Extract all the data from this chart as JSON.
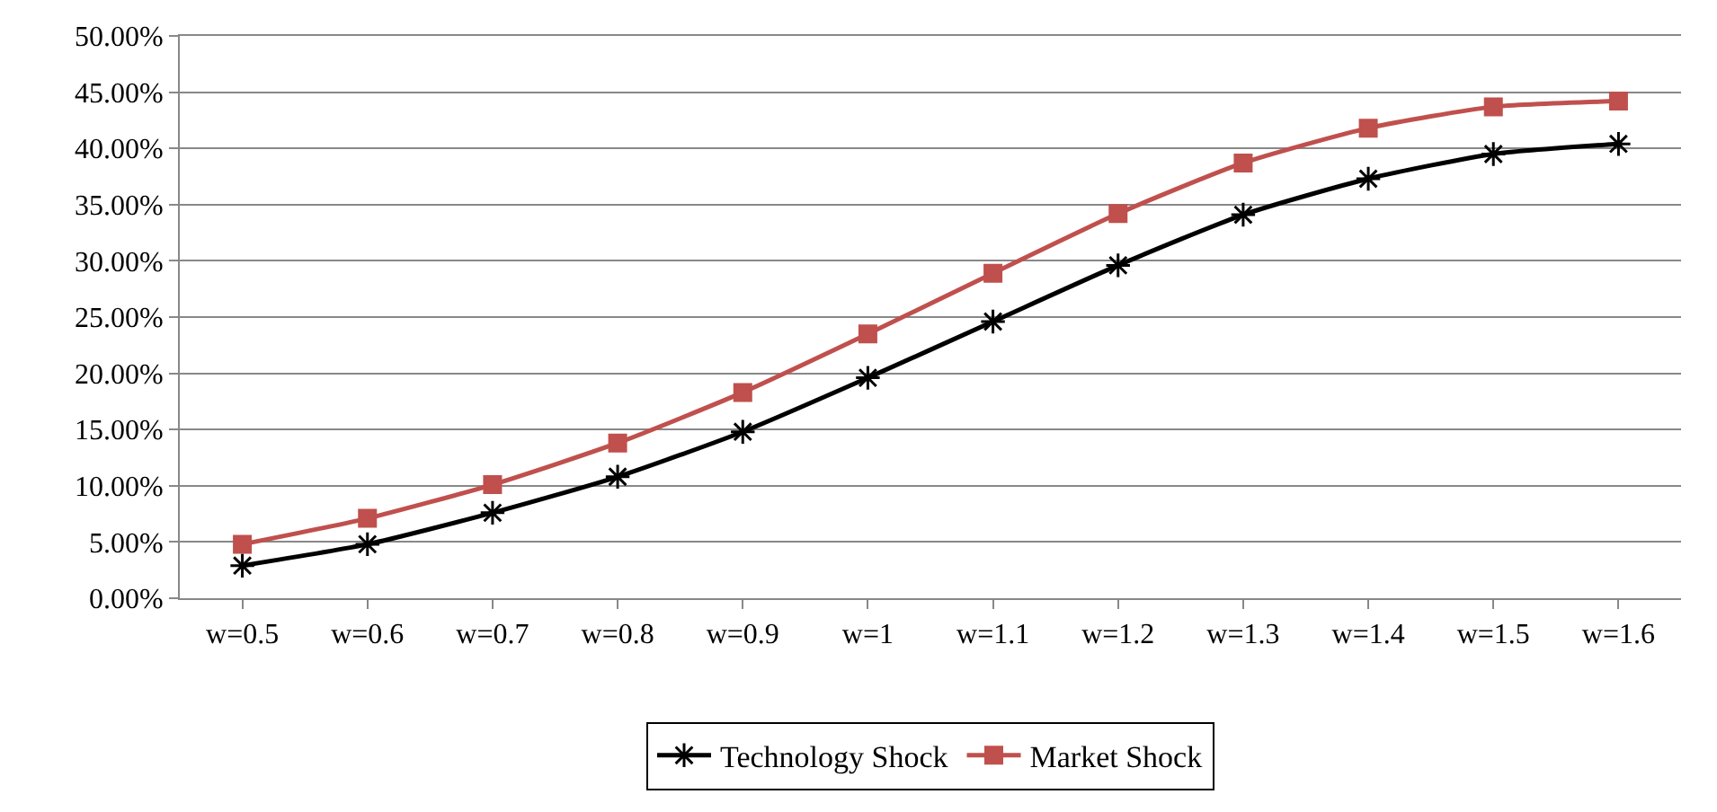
{
  "chart_data": {
    "type": "line",
    "categories": [
      "w=0.5",
      "w=0.6",
      "w=0.7",
      "w=0.8",
      "w=0.9",
      "w=1",
      "w=1.1",
      "w=1.2",
      "w=1.3",
      "w=1.4",
      "w=1.5",
      "w=1.6"
    ],
    "series": [
      {
        "name": "Technology Shock",
        "color": "#000000",
        "marker": "cross",
        "values": [
          2.9,
          4.8,
          7.6,
          10.8,
          14.8,
          19.6,
          24.6,
          29.6,
          34.1,
          37.3,
          39.5,
          40.4
        ]
      },
      {
        "name": "Market Shock",
        "color": "#c0504d",
        "marker": "square",
        "values": [
          4.8,
          7.1,
          10.1,
          13.8,
          18.3,
          23.5,
          28.9,
          34.2,
          38.7,
          41.8,
          43.7,
          44.2
        ]
      }
    ],
    "ylim": [
      0,
      50
    ],
    "yticks": [
      {
        "value": 0,
        "label": "0.00%"
      },
      {
        "value": 5,
        "label": "5.00%"
      },
      {
        "value": 10,
        "label": "10.00%"
      },
      {
        "value": 15,
        "label": "15.00%"
      },
      {
        "value": 20,
        "label": "20.00%"
      },
      {
        "value": 25,
        "label": "25.00%"
      },
      {
        "value": 30,
        "label": "30.00%"
      },
      {
        "value": 35,
        "label": "35.00%"
      },
      {
        "value": 40,
        "label": "40.00%"
      },
      {
        "value": 45,
        "label": "45.00%"
      },
      {
        "value": 50,
        "label": "50.00%"
      }
    ],
    "grid": "y",
    "legend": "bottom",
    "line_style": "solid"
  }
}
